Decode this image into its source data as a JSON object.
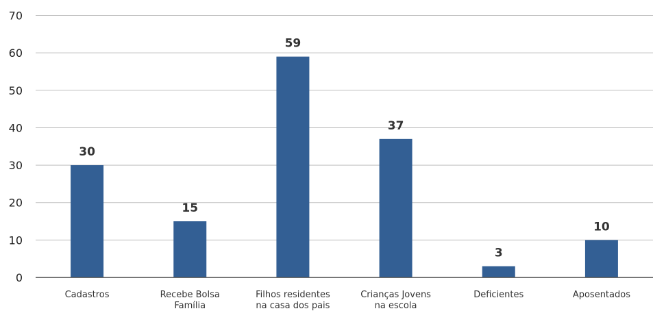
{
  "chart_data": {
    "type": "bar",
    "title": "",
    "xlabel": "",
    "ylabel": "",
    "categories": [
      [
        "Cadastros"
      ],
      [
        "Recebe Bolsa",
        "Família"
      ],
      [
        "Filhos residentes",
        "na casa dos pais"
      ],
      [
        "Crianças Jovens",
        "na escola"
      ],
      [
        "Deficientes"
      ],
      [
        "Aposentados"
      ]
    ],
    "values": [
      30,
      15,
      59,
      37,
      3,
      10
    ],
    "data_labels": [
      "30",
      "15",
      "59",
      "37",
      "3",
      "10"
    ],
    "yticks": [
      "0",
      "10",
      "20",
      "30",
      "40",
      "50",
      "60",
      "70"
    ],
    "ylim": [
      0,
      70
    ],
    "grid": true,
    "legend": "none",
    "bar_color": "#335f94",
    "grid_color": "#bdbdbd",
    "axis_color": "#4a4a4a"
  }
}
